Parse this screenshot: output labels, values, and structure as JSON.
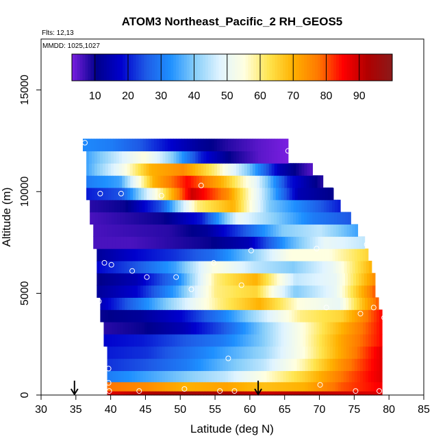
{
  "chart_data": {
    "type": "heatmap",
    "title": "ATOM3 Northeast_Pacific_2 RH_GEOS5",
    "flights_label": "Flts: 12,13",
    "dates_label": "MMDD: 1025,1027",
    "xlabel": "Latitude (deg N)",
    "ylabel": "Altitude (m)",
    "xlim": [
      30,
      85
    ],
    "ylim": [
      0,
      17500
    ],
    "xticks": [
      "30",
      "35",
      "40",
      "45",
      "50",
      "55",
      "60",
      "65",
      "70",
      "75",
      "80",
      "85"
    ],
    "yticks": [
      "0",
      "5000",
      "10000",
      "15000"
    ],
    "colorbar": {
      "range": [
        3,
        100
      ],
      "ticks": [
        "10",
        "20",
        "30",
        "40",
        "50",
        "60",
        "70",
        "80",
        "90"
      ],
      "colors": [
        "#7a1fe0",
        "#00008b",
        "#0000cd",
        "#1e5ae6",
        "#1e90ff",
        "#87cefa",
        "#e0f4ff",
        "#ffffe0",
        "#ffe44d",
        "#ffb000",
        "#ff7800",
        "#ff0000",
        "#b00000",
        "#8b1a1a"
      ]
    },
    "markers": [
      {
        "lat": 34.8,
        "alt": 0
      },
      {
        "lat": 61.2,
        "alt": 0
      }
    ],
    "rows": [
      {
        "alt": 12300,
        "lat": [
          36.0,
          65.5
        ],
        "rh": [
          32,
          30,
          25,
          18,
          12,
          8,
          5,
          3
        ]
      },
      {
        "alt": 11700,
        "lat": [
          36.5,
          65.5
        ],
        "rh": [
          35,
          45,
          55,
          40,
          20,
          10,
          5,
          3
        ]
      },
      {
        "alt": 11100,
        "lat": [
          36.5,
          69.0
        ],
        "rh": [
          35,
          50,
          70,
          75,
          60,
          40,
          15,
          5
        ]
      },
      {
        "alt": 10500,
        "lat": [
          36.5,
          70.5
        ],
        "rh": [
          30,
          35,
          70,
          85,
          70,
          50,
          20,
          8
        ]
      },
      {
        "alt": 9900,
        "lat": [
          36.5,
          72.0
        ],
        "rh": [
          20,
          25,
          55,
          90,
          75,
          45,
          15,
          10
        ]
      },
      {
        "alt": 9300,
        "lat": [
          37.0,
          73.0
        ],
        "rh": [
          8,
          10,
          25,
          60,
          70,
          40,
          30,
          20
        ]
      },
      {
        "alt": 8700,
        "lat": [
          37.0,
          74.5
        ],
        "rh": [
          6,
          8,
          10,
          20,
          50,
          40,
          30,
          25
        ]
      },
      {
        "alt": 8100,
        "lat": [
          37.5,
          75.5
        ],
        "rh": [
          6,
          7,
          8,
          12,
          25,
          40,
          45,
          35
        ]
      },
      {
        "alt": 7500,
        "lat": [
          37.5,
          76.5
        ],
        "rh": [
          6,
          6,
          8,
          10,
          15,
          35,
          50,
          45
        ]
      },
      {
        "alt": 6900,
        "lat": [
          38.0,
          77.0
        ],
        "rh": [
          12,
          18,
          22,
          28,
          40,
          55,
          55,
          65
        ]
      },
      {
        "alt": 6300,
        "lat": [
          38.0,
          77.5
        ],
        "rh": [
          18,
          25,
          35,
          55,
          45,
          40,
          50,
          70
        ]
      },
      {
        "alt": 5700,
        "lat": [
          38.0,
          78.0
        ],
        "rh": [
          10,
          15,
          30,
          60,
          70,
          45,
          50,
          75
        ]
      },
      {
        "alt": 5100,
        "lat": [
          38.0,
          78.0
        ],
        "rh": [
          12,
          18,
          35,
          60,
          65,
          40,
          50,
          80
        ]
      },
      {
        "alt": 4500,
        "lat": [
          38.5,
          78.5
        ],
        "rh": [
          15,
          30,
          45,
          60,
          70,
          55,
          50,
          80
        ]
      },
      {
        "alt": 3900,
        "lat": [
          38.5,
          79.0
        ],
        "rh": [
          10,
          12,
          18,
          30,
          45,
          60,
          65,
          85
        ]
      },
      {
        "alt": 3300,
        "lat": [
          39.0,
          79.0
        ],
        "rh": [
          8,
          10,
          15,
          25,
          40,
          55,
          70,
          85
        ]
      },
      {
        "alt": 2700,
        "lat": [
          39.0,
          79.0
        ],
        "rh": [
          18,
          20,
          25,
          30,
          40,
          55,
          72,
          85
        ]
      },
      {
        "alt": 2100,
        "lat": [
          39.5,
          79.0
        ],
        "rh": [
          20,
          22,
          28,
          35,
          42,
          55,
          72,
          88
        ]
      },
      {
        "alt": 1500,
        "lat": [
          39.5,
          79.0
        ],
        "rh": [
          22,
          25,
          30,
          38,
          45,
          58,
          75,
          88
        ]
      },
      {
        "alt": 900,
        "lat": [
          39.5,
          79.0
        ],
        "rh": [
          30,
          35,
          40,
          45,
          55,
          65,
          78,
          88
        ]
      },
      {
        "alt": 400,
        "lat": [
          39.5,
          79.0
        ],
        "rh": [
          78,
          75,
          70,
          72,
          68,
          70,
          80,
          86
        ]
      },
      {
        "alt": 0,
        "lat": [
          39.5,
          79.0
        ],
        "rh": [
          88,
          92,
          95,
          93,
          90,
          92,
          90,
          88
        ]
      }
    ],
    "points": [
      {
        "lat": 36.3,
        "alt": 12400
      },
      {
        "lat": 65.5,
        "alt": 12000
      },
      {
        "lat": 72.2,
        "alt": 10300
      },
      {
        "lat": 53.0,
        "alt": 10300
      },
      {
        "lat": 38.5,
        "alt": 9900
      },
      {
        "lat": 41.5,
        "alt": 9900
      },
      {
        "lat": 47.3,
        "alt": 9800
      },
      {
        "lat": 37.0,
        "alt": 7200
      },
      {
        "lat": 60.2,
        "alt": 7100
      },
      {
        "lat": 69.6,
        "alt": 7200
      },
      {
        "lat": 76.8,
        "alt": 7400
      },
      {
        "lat": 39.1,
        "alt": 6500
      },
      {
        "lat": 40.1,
        "alt": 6400
      },
      {
        "lat": 54.8,
        "alt": 6500
      },
      {
        "lat": 43.1,
        "alt": 6100
      },
      {
        "lat": 45.2,
        "alt": 5800
      },
      {
        "lat": 49.4,
        "alt": 5800
      },
      {
        "lat": 58.8,
        "alt": 5400
      },
      {
        "lat": 51.6,
        "alt": 5200
      },
      {
        "lat": 38.3,
        "alt": 4600
      },
      {
        "lat": 71.0,
        "alt": 4300
      },
      {
        "lat": 75.9,
        "alt": 4000
      },
      {
        "lat": 77.8,
        "alt": 4300
      },
      {
        "lat": 79.3,
        "alt": 3800
      },
      {
        "lat": 56.9,
        "alt": 1800
      },
      {
        "lat": 39.7,
        "alt": 1300
      },
      {
        "lat": 39.7,
        "alt": 600
      },
      {
        "lat": 70.1,
        "alt": 500
      },
      {
        "lat": 39.8,
        "alt": 200
      },
      {
        "lat": 44.1,
        "alt": 200
      },
      {
        "lat": 50.6,
        "alt": 300
      },
      {
        "lat": 55.7,
        "alt": 200
      },
      {
        "lat": 57.8,
        "alt": 200
      },
      {
        "lat": 75.2,
        "alt": 200
      },
      {
        "lat": 78.6,
        "alt": 200
      }
    ]
  }
}
